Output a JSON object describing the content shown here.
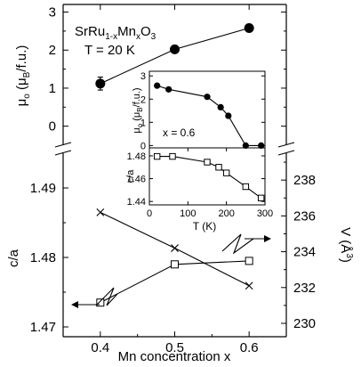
{
  "chart_data": [
    {
      "id": "moment-main",
      "type": "scatter",
      "annotations": [
        "SrRu1-xMnxO3",
        "T = 20 K"
      ],
      "formula_parts": [
        "SrRu",
        "1-x",
        "Mn",
        "x",
        "O",
        "3"
      ],
      "temperature_label": "T = 20 K",
      "ylabel": "μo (μB/f.u.)",
      "ylabel_parts": [
        "μ",
        "o",
        " (μ",
        "B",
        "/f.u.)"
      ],
      "xlim": [
        0.35,
        0.65
      ],
      "ylim": [
        -0.5,
        3.2
      ],
      "yticks": [
        0,
        1,
        2,
        3
      ],
      "series": [
        {
          "x": [
            0.4,
            0.5,
            0.6
          ],
          "y": [
            1.12,
            2.02,
            2.58
          ],
          "error": [
            0.17,
            0,
            0
          ],
          "marker": "filled-circle"
        }
      ]
    },
    {
      "id": "structure-main",
      "type": "line",
      "xlabel": "Mn concentration x",
      "xlim": [
        0.35,
        0.65
      ],
      "xticks": [
        "0.4",
        "0.5",
        "0.6"
      ],
      "xtick_values": [
        0.4,
        0.5,
        0.6
      ],
      "left_axis": {
        "label": "c/a",
        "ylim": [
          1.47,
          1.495
        ],
        "ticks": [
          "1.47",
          "1.48",
          "1.49"
        ],
        "tick_values": [
          1.47,
          1.48,
          1.49
        ]
      },
      "right_axis": {
        "label": "V (Å3)",
        "label_parts": [
          "V (",
          "Å",
          "3",
          ")"
        ],
        "ylim": [
          230,
          239.5
        ],
        "ticks": [
          "230",
          "232",
          "234",
          "236",
          "238"
        ],
        "tick_values": [
          230,
          232,
          234,
          236,
          238
        ]
      },
      "series": [
        {
          "axis": "left",
          "marker": "open-square",
          "x": [
            0.4,
            0.5,
            0.6
          ],
          "y": [
            1.4735,
            1.479,
            1.4795
          ]
        },
        {
          "axis": "right",
          "marker": "cross",
          "x": [
            0.4,
            0.5,
            0.6
          ],
          "y": [
            236.2,
            234.2,
            232.1
          ]
        }
      ]
    },
    {
      "id": "inset-moment",
      "type": "scatter",
      "annotation": "x = 0.6",
      "ylabel": "μo (μB/f.u.)",
      "ylabel_parts": [
        "μ",
        "o",
        " (μ",
        "B",
        "/f.u.)"
      ],
      "xlim": [
        0,
        300
      ],
      "ylim": [
        -0.1,
        3.2
      ],
      "yticks": [
        "0",
        "1",
        "2",
        "3"
      ],
      "ytick_values": [
        0,
        1,
        2,
        3
      ],
      "series": [
        {
          "x": [
            20,
            50,
            150,
            185,
            205,
            250,
            290
          ],
          "y": [
            2.58,
            2.42,
            2.1,
            1.65,
            1.28,
            0.0,
            0.0
          ],
          "marker": "filled-circle"
        }
      ]
    },
    {
      "id": "inset-ca",
      "type": "line",
      "xlabel": "T (K)",
      "ylabel": "c/a",
      "xlim": [
        0,
        300
      ],
      "xticks": [
        "0",
        "100",
        "200",
        "300"
      ],
      "xtick_values": [
        0,
        100,
        200,
        300
      ],
      "ylim": [
        1.437,
        1.487
      ],
      "yticks": [
        "1.44",
        "1.46",
        "1.48"
      ],
      "ytick_values": [
        1.44,
        1.46,
        1.48
      ],
      "series": [
        {
          "x": [
            20,
            60,
            150,
            180,
            200,
            250,
            290
          ],
          "y": [
            1.4795,
            1.4795,
            1.4745,
            1.47,
            1.465,
            1.453,
            1.443
          ],
          "marker": "open-square"
        }
      ]
    }
  ]
}
